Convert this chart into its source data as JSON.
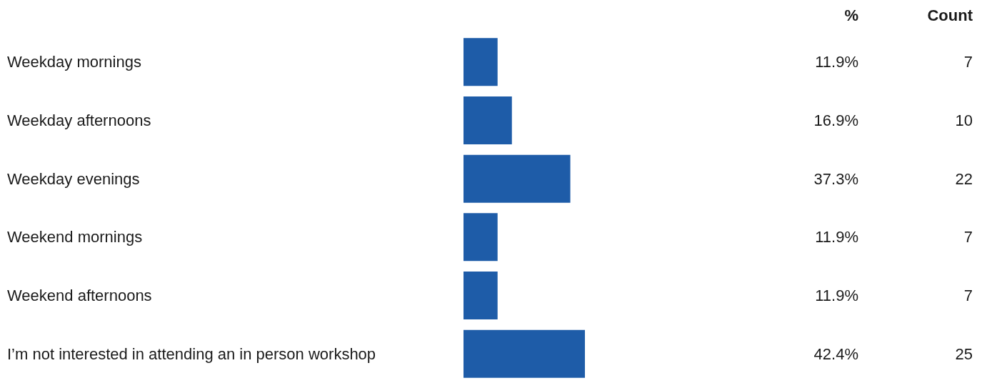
{
  "chart_data": {
    "type": "bar",
    "orientation": "horizontal",
    "categories": [
      "Weekday mornings",
      "Weekday afternoons",
      "Weekday evenings",
      "Weekend mornings",
      "Weekend afternoons",
      "I’m not interested in attending an in person workshop"
    ],
    "series": [
      {
        "name": "%",
        "color": "#1e5ca8",
        "values": [
          11.9,
          16.9,
          37.3,
          11.9,
          11.9,
          42.4
        ],
        "value_labels": [
          "11.9%",
          "16.9%",
          "37.3%",
          "11.9%",
          "11.9%",
          "42.4%"
        ]
      }
    ],
    "annotations": [
      "Count",
      "7",
      "10",
      "22",
      "7",
      "7",
      "25"
    ],
    "legend": false
  }
}
